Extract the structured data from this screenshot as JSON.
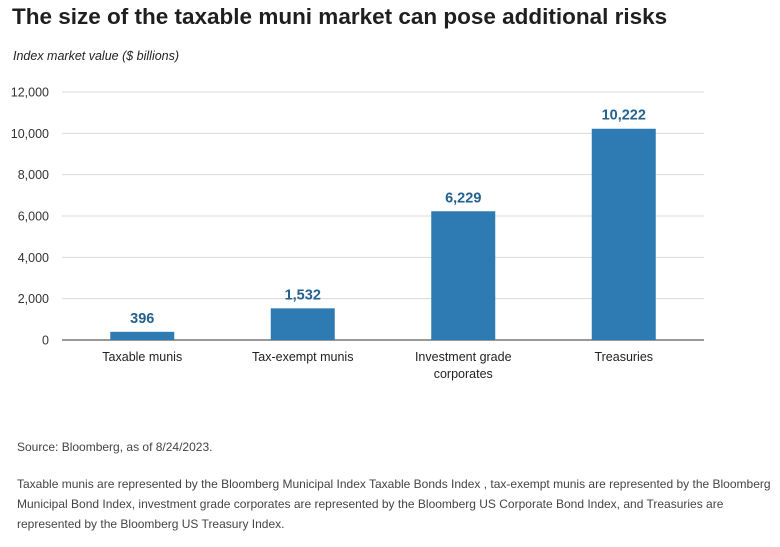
{
  "title": "The size of the taxable muni market can pose additional risks",
  "source": "Source: Bloomberg, as of 8/24/2023.",
  "note": "Taxable munis are represented by the Bloomberg Municipal Index Taxable Bonds Index , tax-exempt munis are represented by the Bloomberg Municipal Bond Index, investment grade corporates are represented by the Bloomberg US Corporate Bond Index, and Treasuries are represented by the Bloomberg US Treasury Index.",
  "colors": {
    "bar": "#2e7bb3",
    "label": "#24618f",
    "grid": "#d9d9d9",
    "axis": "#333333"
  },
  "chart_data": {
    "type": "bar",
    "title": "The size of the taxable muni market can pose additional risks",
    "ylabel": "Index market value ($ billions)",
    "xlabel": "",
    "categories": [
      [
        "Taxable munis"
      ],
      [
        "Tax-exempt munis"
      ],
      [
        "Investment grade",
        "corporates"
      ],
      [
        "Treasuries"
      ]
    ],
    "values": [
      396,
      1532,
      6229,
      10222
    ],
    "value_labels": [
      "396",
      "1,532",
      "6,229",
      "10,222"
    ],
    "ylim": [
      0,
      12000
    ],
    "yticks": [
      0,
      2000,
      4000,
      6000,
      8000,
      10000,
      12000
    ],
    "ytick_labels": [
      "0",
      "2,000",
      "4,000",
      "6,000",
      "8,000",
      "10,000",
      "12,000"
    ],
    "grid": true,
    "legend": "none"
  }
}
